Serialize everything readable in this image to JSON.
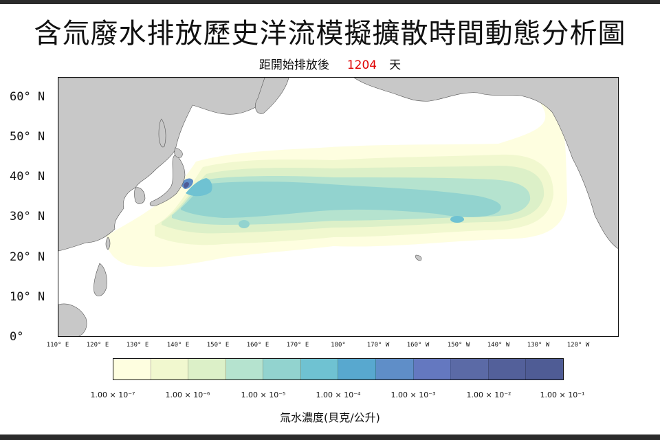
{
  "title": "含氚廢水排放歷史洋流模擬擴散時間動態分析圖",
  "subtitle": {
    "prefix": "距開始排放後",
    "days": "1204",
    "suffix": "天"
  },
  "colors": {
    "land": "#c8c8c8",
    "ocean": "#ffffff",
    "days_text": "#e00000"
  },
  "latitude_labels": [
    "60° N",
    "50° N",
    "40° N",
    "30° N",
    "20° N",
    "10° N",
    "0°"
  ],
  "longitude_labels": [
    "110° E",
    "120° E",
    "130° E",
    "140° E",
    "150° E",
    "160° E",
    "170° E",
    "180°",
    "170° W",
    "160° W",
    "150° W",
    "140° W",
    "130° W",
    "120° W"
  ],
  "colorbar": {
    "colors": [
      "#fefee0",
      "#f1f8cf",
      "#dcf0c8",
      "#b5e3cf",
      "#92d3cf",
      "#6fc2d2",
      "#58a8cf",
      "#5f8ec8",
      "#6478c0",
      "#5b6aa6",
      "#53609a",
      "#4f5c95"
    ],
    "tick_labels": [
      "1.00 × 10⁻⁷",
      "1.00 × 10⁻⁶",
      "1.00 × 10⁻⁵",
      "1.00 × 10⁻⁴",
      "1.00 × 10⁻³",
      "1.00 × 10⁻²",
      "1.00 × 10⁻¹"
    ],
    "title": "氚水濃度(貝克/公升)"
  }
}
